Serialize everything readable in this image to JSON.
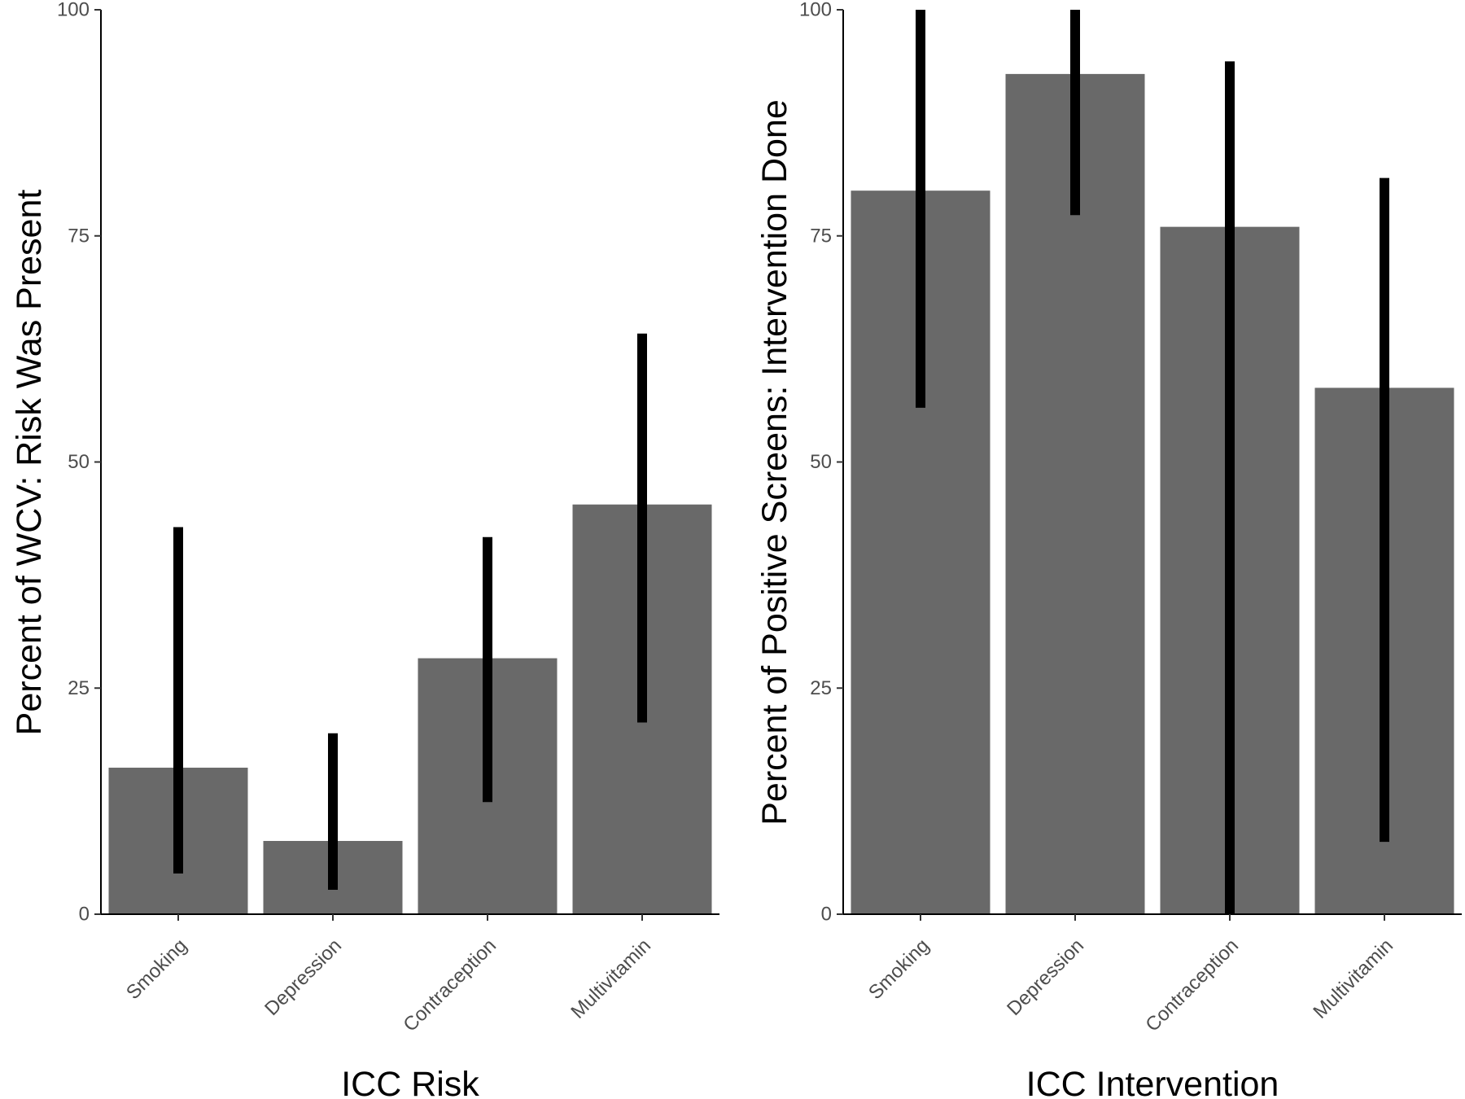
{
  "chart_data": [
    {
      "type": "bar",
      "title": "",
      "xlabel": "ICC Risk",
      "ylabel": "Percent of WCV: Risk Was Present",
      "categories": [
        "Smoking",
        "Depression",
        "Contraception",
        "Multivitamin"
      ],
      "values": [
        16.2,
        8.1,
        28.3,
        45.3
      ],
      "error_low": [
        4.5,
        2.7,
        12.4,
        21.2
      ],
      "error_high": [
        42.8,
        20.0,
        41.7,
        64.2
      ],
      "ylim": [
        0,
        100
      ],
      "yticks": [
        "0",
        "25",
        "50",
        "75",
        "100"
      ],
      "grid": false,
      "legend": "none",
      "bar_color": "#696969",
      "error_bar_color": "#000000"
    },
    {
      "type": "bar",
      "title": "",
      "xlabel": "ICC Intervention",
      "ylabel": "Percent of Positive Screens: Intervention Done",
      "categories": [
        "Smoking",
        "Depression",
        "Contraception",
        "Multivitamin"
      ],
      "values": [
        80.0,
        92.9,
        76.0,
        58.2
      ],
      "error_low": [
        56.0,
        77.3,
        0.0,
        8.0
      ],
      "error_high": [
        100.0,
        100.0,
        94.3,
        81.4
      ],
      "ylim": [
        0,
        100
      ],
      "yticks": [
        "0",
        "25",
        "50",
        "75",
        "100"
      ],
      "grid": false,
      "legend": "none",
      "bar_color": "#696969",
      "error_bar_color": "#000000"
    }
  ]
}
